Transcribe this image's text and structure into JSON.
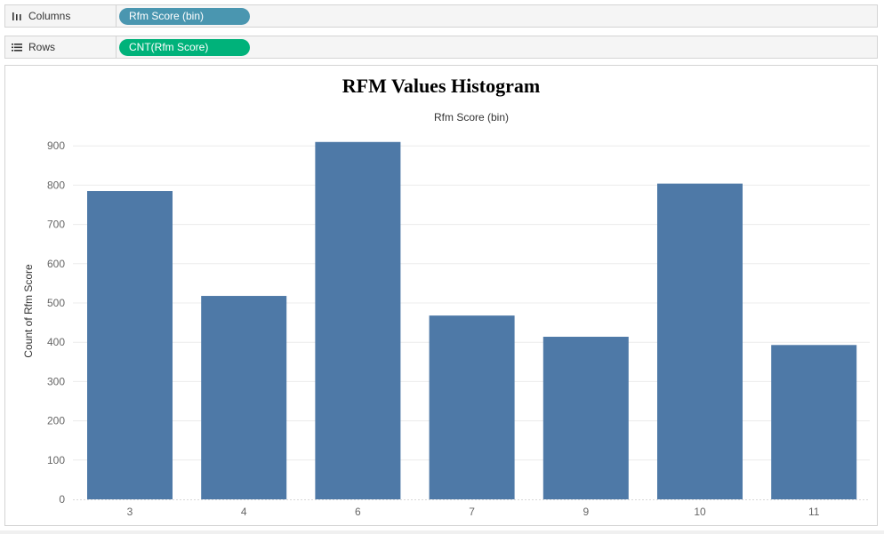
{
  "shelves": {
    "columns": {
      "name": "Columns",
      "pill": "Rfm Score (bin)",
      "pill_color": "#4a96b0",
      "icon": "columns-icon"
    },
    "rows": {
      "name": "Rows",
      "pill": "CNT(Rfm Score)",
      "pill_color": "#00b27a",
      "icon": "rows-icon"
    }
  },
  "chart_data": {
    "type": "bar",
    "title": "RFM Values Histogram",
    "xlabel": "Rfm Score (bin)",
    "ylabel": "Count of Rfm Score",
    "categories": [
      "3",
      "4",
      "6",
      "7",
      "9",
      "10",
      "11"
    ],
    "values": [
      785,
      518,
      910,
      468,
      414,
      804,
      393
    ],
    "ylim": [
      0,
      950
    ],
    "yticks": [
      0,
      100,
      200,
      300,
      400,
      500,
      600,
      700,
      800,
      900
    ],
    "bar_color": "#4e79a7",
    "grid": true,
    "legend": "none"
  }
}
